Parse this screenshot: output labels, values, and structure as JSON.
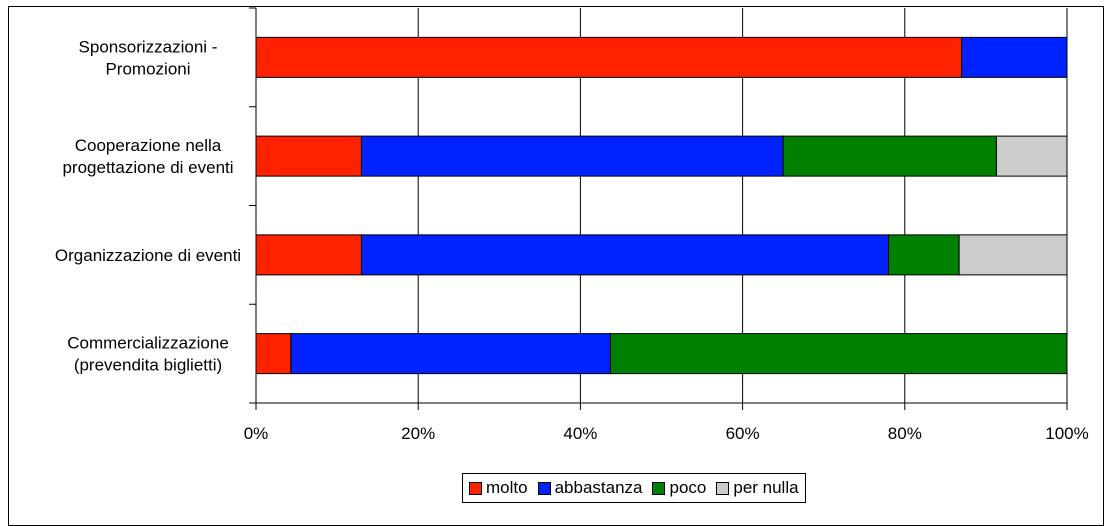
{
  "chart_data": {
    "type": "bar",
    "orientation": "horizontal",
    "stacked": "percent",
    "categories": [
      [
        "Sponsorizzazioni -",
        "Promozioni"
      ],
      [
        "Cooperazione nella",
        "progettazione di eventi"
      ],
      [
        "Organizzazione di eventi"
      ],
      [
        "Commercializzazione",
        "(prevendita biglietti)"
      ]
    ],
    "series": [
      {
        "name": "molto",
        "color": "#ff2200",
        "values": [
          87,
          13,
          13,
          4.3
        ]
      },
      {
        "name": "abbastanza",
        "color": "#0022ff",
        "values": [
          13,
          52,
          65,
          39.4
        ]
      },
      {
        "name": "poco",
        "color": "#008000",
        "values": [
          0,
          26.3,
          8.7,
          56.3
        ]
      },
      {
        "name": "per nulla",
        "color": "#cccccc",
        "values": [
          0,
          8.7,
          13.3,
          0
        ]
      }
    ],
    "xticks": [
      "0%",
      "20%",
      "40%",
      "60%",
      "80%",
      "100%"
    ],
    "xlim": [
      0,
      100
    ],
    "grid": true,
    "legend": "bottom"
  }
}
